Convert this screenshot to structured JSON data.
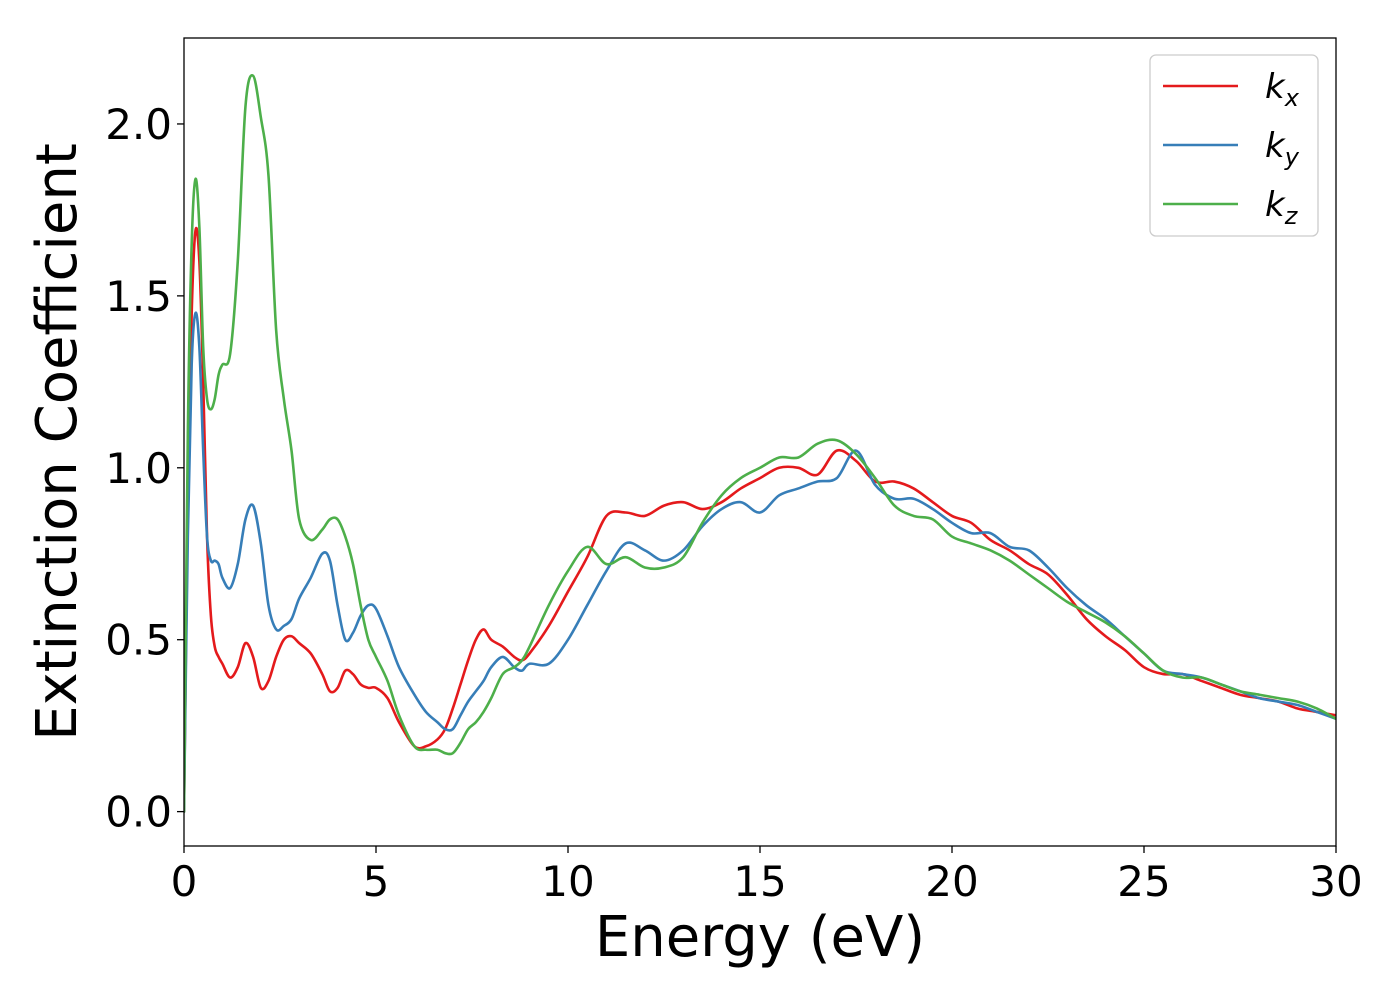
{
  "chart_data": {
    "type": "line",
    "xlabel": "Energy (eV)",
    "ylabel": "Extinction Coefficient",
    "xlim": [
      0,
      30
    ],
    "ylim": [
      -0.1,
      2.25
    ],
    "xticks": [
      0,
      5,
      10,
      15,
      20,
      25,
      30
    ],
    "xtick_labels": [
      "0",
      "5",
      "10",
      "15",
      "20",
      "25",
      "30"
    ],
    "yticks": [
      0.0,
      0.5,
      1.0,
      1.5,
      2.0
    ],
    "ytick_labels": [
      "0.0",
      "0.5",
      "1.0",
      "1.5",
      "2.0"
    ],
    "grid": false,
    "legend_position": "top-right",
    "series": [
      {
        "name": "k",
        "subscript": "x",
        "color": "#e41a1c",
        "x": [
          0,
          0.1,
          0.2,
          0.3,
          0.4,
          0.5,
          0.6,
          0.7,
          0.8,
          0.9,
          1.0,
          1.2,
          1.4,
          1.6,
          1.8,
          2.0,
          2.2,
          2.4,
          2.6,
          2.8,
          3.0,
          3.3,
          3.6,
          3.8,
          4.0,
          4.2,
          4.4,
          4.6,
          4.8,
          5.0,
          5.3,
          5.6,
          6.0,
          6.3,
          6.6,
          6.8,
          7.0,
          7.2,
          7.4,
          7.6,
          7.8,
          8.0,
          8.3,
          8.6,
          8.8,
          9.0,
          9.5,
          10.0,
          10.5,
          11.0,
          11.5,
          12.0,
          12.5,
          13.0,
          13.5,
          14.0,
          14.5,
          15.0,
          15.5,
          16.0,
          16.5,
          17.0,
          17.5,
          18.0,
          18.5,
          19.0,
          19.5,
          20.0,
          20.5,
          21.0,
          21.5,
          22.0,
          22.5,
          23.0,
          23.5,
          24.0,
          24.5,
          25.0,
          25.5,
          26.0,
          26.5,
          27.0,
          27.5,
          28.0,
          28.5,
          29.0,
          29.5,
          30.0
        ],
        "y": [
          0.0,
          0.9,
          1.45,
          1.69,
          1.6,
          1.25,
          0.8,
          0.57,
          0.48,
          0.45,
          0.43,
          0.39,
          0.42,
          0.49,
          0.45,
          0.36,
          0.38,
          0.45,
          0.5,
          0.51,
          0.49,
          0.46,
          0.4,
          0.35,
          0.36,
          0.41,
          0.4,
          0.37,
          0.36,
          0.36,
          0.33,
          0.26,
          0.19,
          0.19,
          0.21,
          0.24,
          0.3,
          0.37,
          0.44,
          0.5,
          0.53,
          0.5,
          0.48,
          0.45,
          0.44,
          0.46,
          0.54,
          0.64,
          0.74,
          0.86,
          0.87,
          0.86,
          0.89,
          0.9,
          0.88,
          0.9,
          0.94,
          0.97,
          1.0,
          1.0,
          0.98,
          1.05,
          1.02,
          0.96,
          0.96,
          0.94,
          0.9,
          0.86,
          0.84,
          0.79,
          0.76,
          0.72,
          0.69,
          0.63,
          0.56,
          0.51,
          0.47,
          0.42,
          0.4,
          0.4,
          0.38,
          0.36,
          0.34,
          0.33,
          0.32,
          0.3,
          0.29,
          0.28
        ]
      },
      {
        "name": "k",
        "subscript": "y",
        "color": "#377eb8",
        "x": [
          0,
          0.1,
          0.2,
          0.3,
          0.4,
          0.5,
          0.6,
          0.7,
          0.8,
          0.9,
          1.0,
          1.2,
          1.4,
          1.6,
          1.8,
          2.0,
          2.2,
          2.4,
          2.6,
          2.8,
          3.0,
          3.3,
          3.6,
          3.8,
          4.0,
          4.2,
          4.4,
          4.6,
          4.8,
          5.0,
          5.3,
          5.6,
          6.0,
          6.3,
          6.6,
          6.8,
          7.0,
          7.2,
          7.4,
          7.6,
          7.8,
          8.0,
          8.3,
          8.6,
          8.8,
          9.0,
          9.5,
          10.0,
          10.5,
          11.0,
          11.5,
          12.0,
          12.5,
          13.0,
          13.5,
          14.0,
          14.5,
          15.0,
          15.5,
          16.0,
          16.5,
          17.0,
          17.5,
          18.0,
          18.5,
          19.0,
          19.5,
          20.0,
          20.5,
          21.0,
          21.5,
          22.0,
          22.5,
          23.0,
          23.5,
          24.0,
          24.5,
          25.0,
          25.5,
          26.0,
          26.5,
          27.0,
          27.5,
          28.0,
          28.5,
          29.0,
          29.5,
          30.0
        ],
        "y": [
          0.0,
          0.8,
          1.3,
          1.45,
          1.35,
          1.05,
          0.8,
          0.73,
          0.73,
          0.72,
          0.68,
          0.65,
          0.72,
          0.85,
          0.89,
          0.78,
          0.6,
          0.53,
          0.54,
          0.56,
          0.62,
          0.68,
          0.75,
          0.73,
          0.6,
          0.5,
          0.52,
          0.57,
          0.6,
          0.59,
          0.51,
          0.42,
          0.34,
          0.29,
          0.26,
          0.24,
          0.24,
          0.28,
          0.32,
          0.35,
          0.38,
          0.42,
          0.45,
          0.42,
          0.41,
          0.43,
          0.43,
          0.5,
          0.6,
          0.7,
          0.78,
          0.76,
          0.73,
          0.76,
          0.83,
          0.88,
          0.9,
          0.87,
          0.92,
          0.94,
          0.96,
          0.97,
          1.05,
          0.95,
          0.91,
          0.91,
          0.88,
          0.84,
          0.81,
          0.81,
          0.77,
          0.76,
          0.71,
          0.65,
          0.6,
          0.56,
          0.51,
          0.46,
          0.41,
          0.4,
          0.39,
          0.37,
          0.35,
          0.33,
          0.32,
          0.31,
          0.29,
          0.27
        ]
      },
      {
        "name": "k",
        "subscript": "z",
        "color": "#4daf4a",
        "x": [
          0,
          0.1,
          0.2,
          0.3,
          0.4,
          0.5,
          0.6,
          0.7,
          0.8,
          0.9,
          1.0,
          1.2,
          1.4,
          1.6,
          1.8,
          2.0,
          2.2,
          2.4,
          2.6,
          2.8,
          3.0,
          3.3,
          3.6,
          3.8,
          4.0,
          4.2,
          4.4,
          4.6,
          4.8,
          5.0,
          5.3,
          5.6,
          6.0,
          6.3,
          6.6,
          6.8,
          7.0,
          7.2,
          7.4,
          7.6,
          7.8,
          8.0,
          8.3,
          8.6,
          8.8,
          9.0,
          9.5,
          10.0,
          10.5,
          11.0,
          11.5,
          12.0,
          12.5,
          13.0,
          13.5,
          14.0,
          14.5,
          15.0,
          15.5,
          16.0,
          16.5,
          17.0,
          17.5,
          18.0,
          18.5,
          19.0,
          19.5,
          20.0,
          20.5,
          21.0,
          21.5,
          22.0,
          22.5,
          23.0,
          23.5,
          24.0,
          24.5,
          25.0,
          25.5,
          26.0,
          26.5,
          27.0,
          27.5,
          28.0,
          28.5,
          29.0,
          29.5,
          30.0
        ],
        "y": [
          0.0,
          1.1,
          1.65,
          1.84,
          1.7,
          1.35,
          1.2,
          1.17,
          1.2,
          1.27,
          1.3,
          1.33,
          1.6,
          2.05,
          2.14,
          2.02,
          1.85,
          1.4,
          1.2,
          1.05,
          0.85,
          0.79,
          0.82,
          0.85,
          0.85,
          0.8,
          0.72,
          0.6,
          0.5,
          0.45,
          0.38,
          0.28,
          0.19,
          0.18,
          0.18,
          0.17,
          0.17,
          0.2,
          0.24,
          0.26,
          0.29,
          0.33,
          0.4,
          0.42,
          0.44,
          0.48,
          0.6,
          0.7,
          0.77,
          0.72,
          0.74,
          0.71,
          0.71,
          0.74,
          0.84,
          0.92,
          0.97,
          1.0,
          1.03,
          1.03,
          1.07,
          1.08,
          1.04,
          0.97,
          0.89,
          0.86,
          0.85,
          0.8,
          0.78,
          0.76,
          0.73,
          0.69,
          0.65,
          0.61,
          0.58,
          0.55,
          0.51,
          0.46,
          0.41,
          0.39,
          0.39,
          0.37,
          0.35,
          0.34,
          0.33,
          0.32,
          0.3,
          0.27
        ]
      }
    ]
  }
}
